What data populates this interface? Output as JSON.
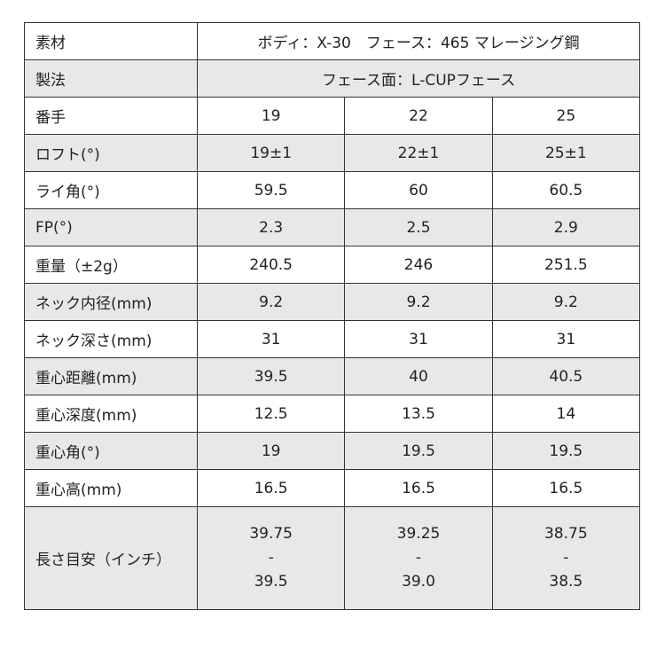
{
  "rows": [
    {
      "label": "素材",
      "span": "ボディ：X-30　フェース：465 マレージング鋼"
    },
    {
      "label": "製法",
      "span": "フェース面：L-CUPフェース"
    },
    {
      "label": "番手",
      "values": [
        "19",
        "22",
        "25"
      ]
    },
    {
      "label": "ロフト(°)",
      "values": [
        "19±1",
        "22±1",
        "25±1"
      ]
    },
    {
      "label": "ライ角(°)",
      "values": [
        "59.5",
        "60",
        "60.5"
      ]
    },
    {
      "label": "FP(°)",
      "values": [
        "2.3",
        "2.5",
        "2.9"
      ]
    },
    {
      "label": "重量（±2g）",
      "values": [
        "240.5",
        "246",
        "251.5"
      ]
    },
    {
      "label": "ネック内径(mm)",
      "values": [
        "9.2",
        "9.2",
        "9.2"
      ]
    },
    {
      "label": "ネック深さ(mm)",
      "values": [
        "31",
        "31",
        "31"
      ]
    },
    {
      "label": "重心距離(mm)",
      "values": [
        "39.5",
        "40",
        "40.5"
      ]
    },
    {
      "label": "重心深度(mm)",
      "values": [
        "12.5",
        "13.5",
        "14"
      ]
    },
    {
      "label": "重心角(°)",
      "values": [
        "19",
        "19.5",
        "19.5"
      ]
    },
    {
      "label": "重心高(mm)",
      "values": [
        "16.5",
        "16.5",
        "16.5"
      ]
    },
    {
      "label": "長さ目安（インチ）",
      "values": [
        [
          "39.75",
          "-",
          "39.5"
        ],
        [
          "39.25",
          "-",
          "39.0"
        ],
        [
          "38.75",
          "-",
          "38.5"
        ]
      ]
    }
  ]
}
